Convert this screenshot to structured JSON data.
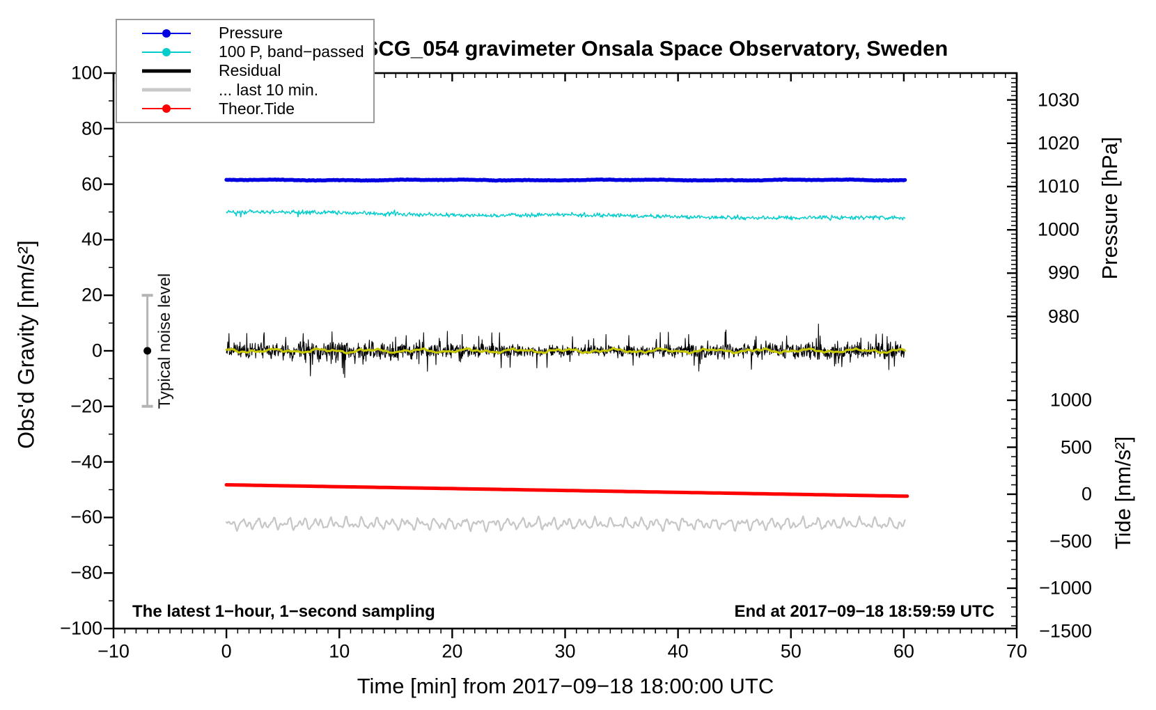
{
  "legend": {
    "items": [
      {
        "label": "Pressure",
        "color": "#0000e0",
        "line": "thin",
        "dot": true
      },
      {
        "label": "100 P, band−passed",
        "color": "#00cccc",
        "line": "thin",
        "dot": true
      },
      {
        "label": "Residual",
        "color": "#000000",
        "line": "thick",
        "dot": false
      },
      {
        "label": "... last 10 min.",
        "color": "#c8c8c8",
        "line": "thick",
        "dot": false
      },
      {
        "label": "Theor.Tide",
        "color": "#ff0000",
        "line": "thin",
        "dot": true
      }
    ]
  },
  "chart_data": {
    "type": "line",
    "title": "SCG_054 gravimeter Onsala Space Observatory, Sweden",
    "xlabel": "Time [min] from 2017−09−18 18:00:00 UTC",
    "x_axis": {
      "range": [
        -10,
        70
      ],
      "major_step": 10,
      "minor_step": 1
    },
    "left_axis": {
      "label": "Obs'd Gravity [nm/s²]",
      "range": [
        -100,
        100
      ],
      "major_step": 20,
      "minor_step": 10
    },
    "right_pressure_axis": {
      "label": "Pressure [hPa]",
      "majors": [
        1030,
        1020,
        1010,
        1000,
        990,
        980
      ],
      "minor_step": 1,
      "minor_range": [
        975,
        1036
      ]
    },
    "right_tide_axis": {
      "label": "Tide [nm/s²]",
      "majors": [
        1000,
        500,
        0,
        -500,
        -1000,
        -1500
      ],
      "minor_step": 100,
      "minor_range": [
        -1500,
        1400
      ]
    },
    "series": [
      {
        "id": "last10",
        "name": "... last 10 min.",
        "axis": "gravity",
        "color": "#c6c6c6",
        "width": 2.2,
        "t_range": [
          0,
          60.1
        ],
        "mean": -62.3,
        "amp": 2.4,
        "points": 700
      },
      {
        "id": "tide",
        "name": "Theor.Tide",
        "axis": "tide",
        "color": "#ff0000",
        "width": 5,
        "t_range": [
          0,
          60.3
        ],
        "start": 100,
        "end": -21,
        "points": 120
      },
      {
        "id": "bandpassed",
        "name": "100 P, band−passed",
        "axis": "gravity",
        "color": "#00cccc",
        "width": 1.4,
        "t_range": [
          0,
          60.1
        ],
        "start": 49.9,
        "end": 47.6,
        "noise": 0.9,
        "points": 900
      },
      {
        "id": "pressure",
        "name": "Pressure",
        "axis": "pressure",
        "color": "#0000e0",
        "width": 5.5,
        "t_range": [
          0,
          60.1
        ],
        "mean": 1011.5,
        "noise": 0.12,
        "points": 500
      },
      {
        "id": "residual",
        "name": "Residual",
        "axis": "gravity",
        "color": "#000000",
        "width": 1.1,
        "t_range": [
          0,
          60.1
        ],
        "mean": 0,
        "noise": 3.1,
        "spike": 8.5,
        "points": 1600
      },
      {
        "id": "residual_smooth",
        "name": "Residual smoothed",
        "axis": "gravity",
        "color": "#c8c800",
        "width": 3,
        "t_range": [
          0,
          60.1
        ],
        "mean": 0,
        "amp": 0.9,
        "points": 600
      }
    ],
    "noise_bar": {
      "label": "Typical noise level",
      "x_min": -7,
      "center": 0,
      "half_range": 20,
      "color": "#b4b4b4"
    },
    "notes": {
      "bottom_left": "The latest 1−hour, 1−second sampling",
      "bottom_right": "End at 2017−09−18 18:59:59 UTC"
    }
  }
}
